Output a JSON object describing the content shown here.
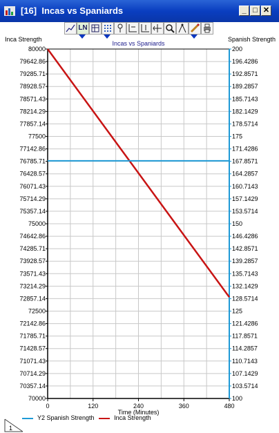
{
  "window": {
    "title": "[16]  Incas vs Spaniards",
    "controls": {
      "minimize": "_",
      "maximize": "□",
      "close": "✕"
    }
  },
  "toolbar": {
    "buttons": [
      "graph-icon",
      "ln-icon",
      "table-icon",
      "grid-icon",
      "pin-icon",
      "axis-icon",
      "axis2-icon",
      "axis3-icon",
      "zoom-icon",
      "compass-icon",
      "pencil-icon",
      "print-icon"
    ],
    "ln_label": "LN"
  },
  "headers": {
    "left": "Inca Strength",
    "right": "Spanish Strength"
  },
  "legend": [
    {
      "label": "Y2 Spanish Strength",
      "color": "#1e9ad6"
    },
    {
      "label": "Inca Strength",
      "color": "#c81414"
    }
  ],
  "colors": {
    "inca": "#c81414",
    "spanish": "#1e9ad6",
    "axis_right": "#1e9ad6"
  },
  "chart_data": {
    "type": "line",
    "title": "Incas vs Spaniards",
    "xlabel": "Time (Minutes)",
    "ylabel": "Inca Strength",
    "y2label": "Spanish Strength",
    "xlim": [
      0,
      480
    ],
    "ylim": [
      70000,
      80000
    ],
    "y2lim": [
      100,
      200
    ],
    "x_ticks": [
      "0",
      "120",
      "240",
      "360",
      "480"
    ],
    "y_ticks": [
      "80000",
      "79642.86",
      "79285.71",
      "78928.57",
      "78571.43",
      "78214.29",
      "77857.14",
      "77500",
      "77142.86",
      "76785.71",
      "76428.57",
      "76071.43",
      "75714.29",
      "75357.14",
      "75000",
      "74642.86",
      "74285.71",
      "73928.57",
      "73571.43",
      "73214.29",
      "72857.14",
      "72500",
      "72142.86",
      "71785.71",
      "71428.57",
      "71071.43",
      "70714.29",
      "70357.14",
      "70000"
    ],
    "y2_ticks": [
      "200",
      "196.4286",
      "192.8571",
      "189.2857",
      "185.7143",
      "182.1429",
      "178.5714",
      "175",
      "171.4286",
      "167.8571",
      "164.2857",
      "160.7143",
      "157.1429",
      "153.5714",
      "150",
      "146.4286",
      "142.8571",
      "139.2857",
      "135.7143",
      "132.1429",
      "128.5714",
      "125",
      "121.4286",
      "117.8571",
      "114.2857",
      "110.7143",
      "107.1429",
      "103.5714",
      "100"
    ],
    "series": [
      {
        "name": "Inca Strength",
        "axis": "y",
        "x": [
          0,
          480
        ],
        "y": [
          80000,
          72900
        ]
      },
      {
        "name": "Y2 Spanish Strength",
        "axis": "y2",
        "x": [
          0,
          480
        ],
        "y": [
          168,
          168
        ]
      }
    ],
    "grid": true,
    "legend_position": "bottom"
  }
}
